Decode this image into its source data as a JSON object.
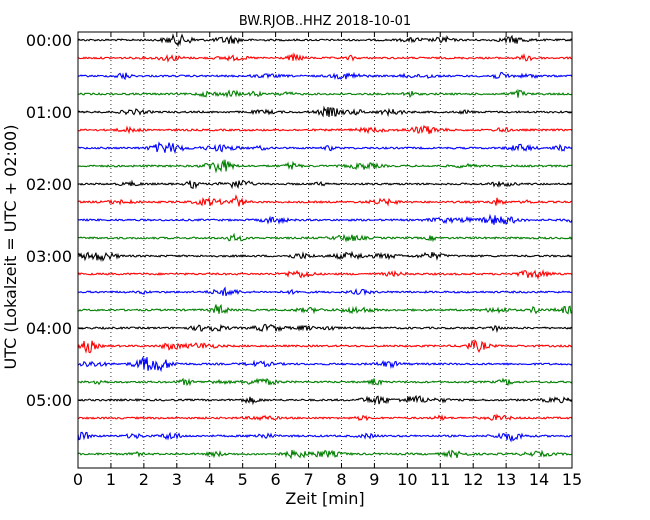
{
  "chart_data": {
    "type": "line",
    "title": "BW.RJOB..HHZ 2018-10-01",
    "xlabel": "Zeit  [min]",
    "ylabel": "UTC (Lokalzeit = UTC + 02:00)",
    "xlim": [
      0,
      15
    ],
    "x_ticks": [
      "0",
      "1",
      "2",
      "3",
      "4",
      "5",
      "6",
      "7",
      "8",
      "9",
      "10",
      "11",
      "12",
      "13",
      "14",
      "15"
    ],
    "row_interval_minutes": 15,
    "row_start": "00:00",
    "row_count": 24,
    "hour_labels": [
      "00:00",
      "01:00",
      "02:00",
      "03:00",
      "04:00",
      "05:00"
    ],
    "trace_colors": [
      "#000000",
      "#ff0000",
      "#0000ff",
      "#008000"
    ],
    "grid_x": true,
    "grid_style": "dotted"
  }
}
